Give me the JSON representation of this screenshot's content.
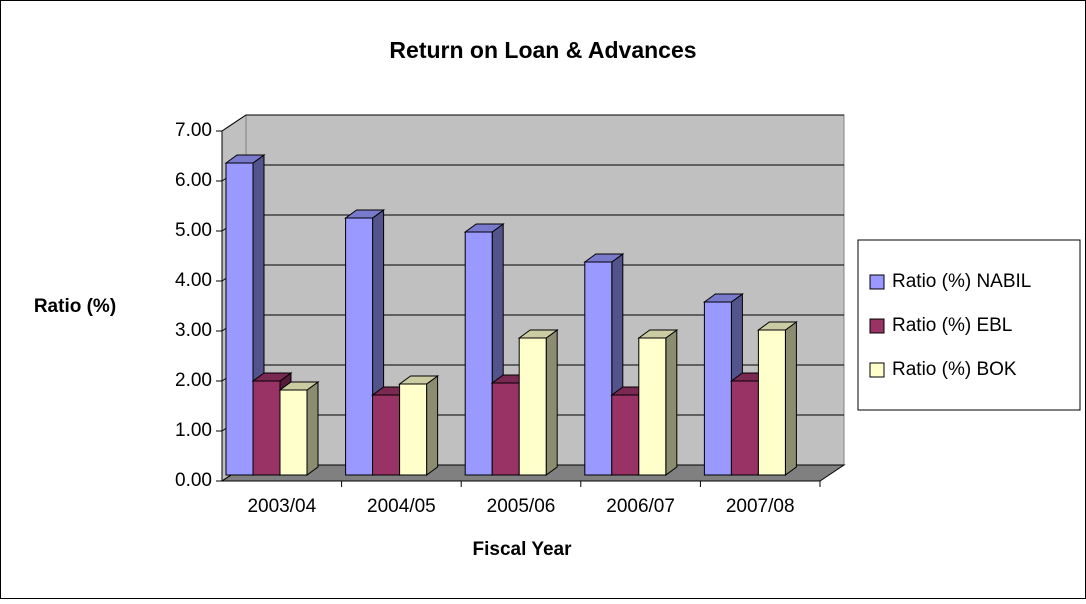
{
  "chart_data": {
    "type": "bar3d",
    "title": "Return on Loan & Advances",
    "x_label": "Fiscal Year",
    "y_label": "Ratio (%)",
    "categories": [
      "2003/04",
      "2004/05",
      "2005/06",
      "2006/07",
      "2007/08"
    ],
    "series": [
      {
        "name": "Ratio (%) NABIL",
        "color": "#9999ff",
        "values": [
          6.24,
          5.14,
          4.86,
          4.26,
          3.46
        ]
      },
      {
        "name": "Ratio (%) EBL",
        "color": "#993366",
        "values": [
          1.88,
          1.6,
          1.84,
          1.6,
          1.88
        ]
      },
      {
        "name": "Ratio (%) BOK",
        "color": "#ffffcc",
        "values": [
          1.7,
          1.82,
          2.74,
          2.74,
          2.9
        ]
      }
    ],
    "ylim": [
      0,
      7
    ],
    "yticks": [
      {
        "value": 0,
        "label": "0.00"
      },
      {
        "value": 1,
        "label": "1.00"
      },
      {
        "value": 2,
        "label": "2.00"
      },
      {
        "value": 3,
        "label": "3.00"
      },
      {
        "value": 4,
        "label": "4.00"
      },
      {
        "value": 5,
        "label": "5.00"
      },
      {
        "value": 6,
        "label": "6.00"
      },
      {
        "value": 7,
        "label": "7.00"
      }
    ],
    "grid": true,
    "legend": "right"
  }
}
